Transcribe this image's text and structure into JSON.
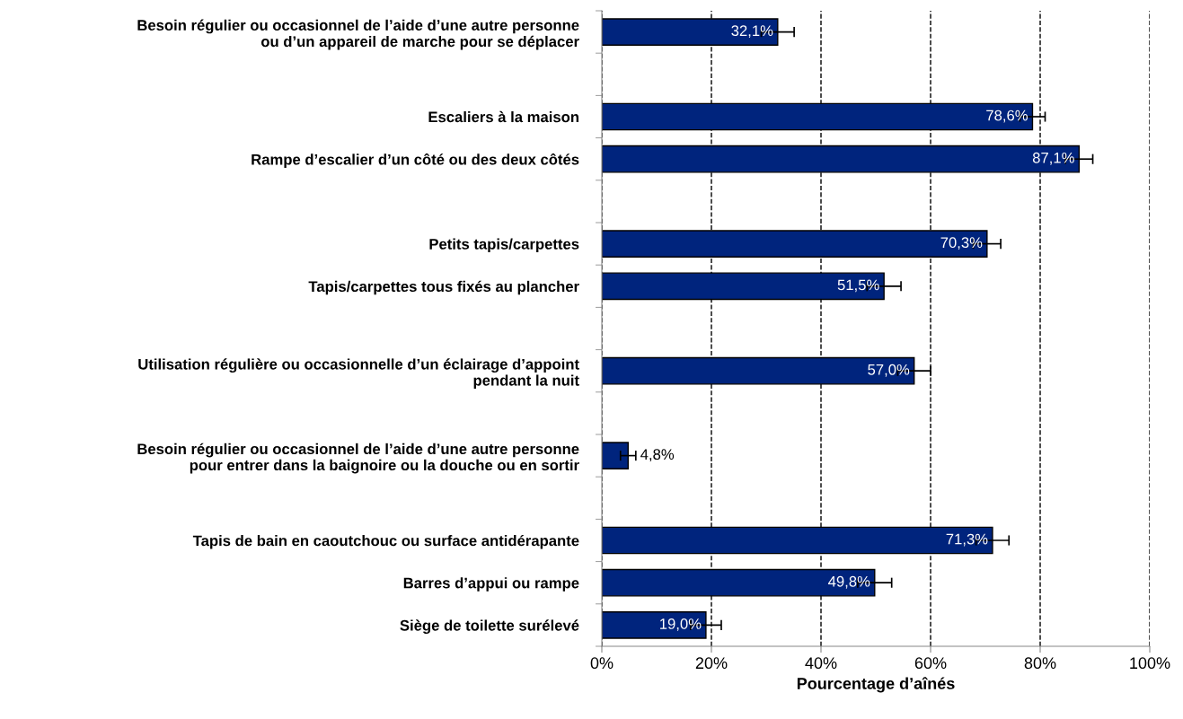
{
  "chart_data": {
    "type": "bar",
    "orientation": "horizontal",
    "xlabel": "Pourcentage d’aînés",
    "categories": [
      "Besoin régulier ou occasionnel de l’aide d’une autre personne\nou d’un appareil de marche pour se déplacer",
      null,
      "Escaliers à la maison",
      "Rampe d’escalier d’un côté ou des deux côtés",
      null,
      "Petits tapis/carpettes",
      "Tapis/carpettes tous fixés au plancher",
      null,
      "Utilisation régulière ou occasionnelle d’un éclairage d’appoint\npendant la nuit",
      null,
      "Besoin régulier ou occasionnel de l’aide d’une autre personne\npour entrer dans la baignoire ou la douche ou en sortir",
      null,
      "Tapis de bain en caoutchouc ou surface antidérapante",
      "Barres d’appui ou rampe",
      "Siège de toilette surélevé"
    ],
    "values": [
      32.1,
      null,
      78.6,
      87.1,
      null,
      70.3,
      51.5,
      null,
      57.0,
      null,
      4.8,
      null,
      71.3,
      49.8,
      19.0
    ],
    "errors": [
      3.0,
      null,
      2.3,
      2.5,
      null,
      2.5,
      3.1,
      null,
      3.0,
      null,
      1.4,
      null,
      3.0,
      3.1,
      2.8
    ],
    "value_labels": [
      "32,1%",
      null,
      "78,6%",
      "87,1%",
      null,
      "70,3%",
      "51,5%",
      null,
      "57,0%",
      null,
      "4,8%",
      null,
      "71,3%",
      "49,8%",
      "19,0%"
    ],
    "color": "#00247d",
    "xlim": [
      0,
      100
    ],
    "xticks": [
      {
        "value": 0,
        "label": "0%"
      },
      {
        "value": 20,
        "label": "20%"
      },
      {
        "value": 40,
        "label": "40%"
      },
      {
        "value": 60,
        "label": "60%"
      },
      {
        "value": 80,
        "label": "80%"
      },
      {
        "value": 100,
        "label": "100%"
      }
    ],
    "grid": "x",
    "line_style": "dashed"
  }
}
